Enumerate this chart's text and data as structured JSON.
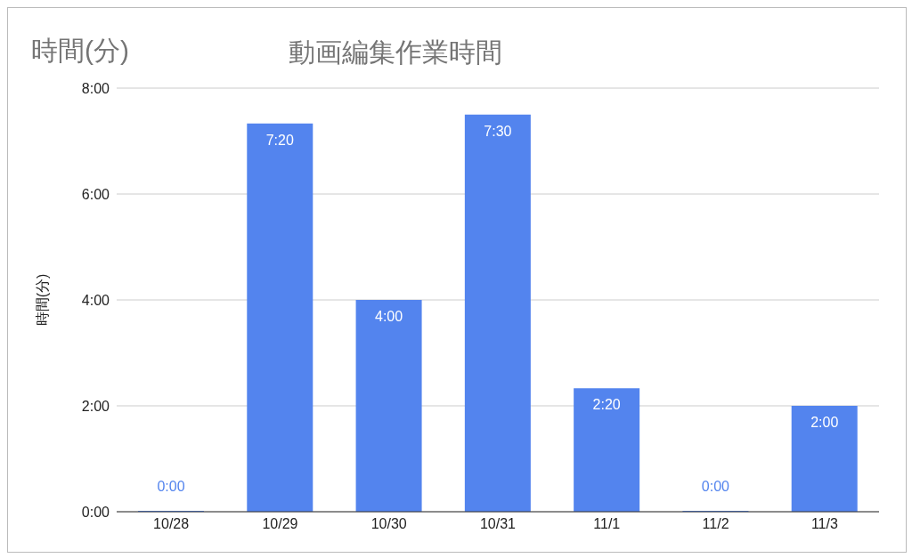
{
  "chart_data": {
    "type": "bar",
    "title": "動画編集作業時間",
    "ylabel": "時間(分)",
    "annotations": [
      "時間(分)"
    ],
    "categories": [
      "10/28",
      "10/29",
      "10/30",
      "10/31",
      "11/1",
      "11/2",
      "11/3"
    ],
    "values": [
      0,
      7.33,
      4,
      7.5,
      2.33,
      0,
      2
    ],
    "value_labels": [
      "0:00",
      "7:20",
      "4:00",
      "7:30",
      "2:20",
      "0:00",
      "2:00"
    ],
    "color": "#5384ee",
    "ylim": [
      0,
      8
    ],
    "yticks": [
      {
        "value": 0,
        "label": "0:00"
      },
      {
        "value": 2,
        "label": "2:00"
      },
      {
        "value": 4,
        "label": "4:00"
      },
      {
        "value": 6,
        "label": "6:00"
      },
      {
        "value": 8,
        "label": "8:00"
      }
    ],
    "grid": "y",
    "legend": false
  }
}
